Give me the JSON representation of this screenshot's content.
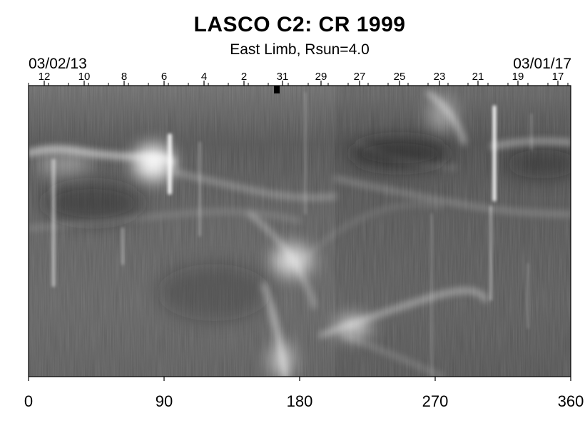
{
  "header": {
    "title": "LASCO C2: CR 1999",
    "subtitle": "East Limb, Rsun=4.0",
    "date_start": "03/02/13",
    "date_end": "03/01/17"
  },
  "top_axis": {
    "day_ticks": [
      {
        "label": "12",
        "pos": 5.5
      },
      {
        "label": "10",
        "pos": 19.5
      },
      {
        "label": "8",
        "pos": 33.5
      },
      {
        "label": "6",
        "pos": 47.5
      },
      {
        "label": "4",
        "pos": 61.5
      },
      {
        "label": "2",
        "pos": 75.5
      },
      {
        "label": "31",
        "pos": 89.0
      },
      {
        "label": "29",
        "pos": 102.5
      },
      {
        "label": "27",
        "pos": 116.0
      },
      {
        "label": "25",
        "pos": 130.0
      },
      {
        "label": "23",
        "pos": 144.0
      },
      {
        "label": "21",
        "pos": 157.5
      },
      {
        "label": "19",
        "pos": 171.5
      },
      {
        "label": "17",
        "pos": 185.5
      }
    ],
    "position_range": [
      0,
      190
    ]
  },
  "bottom_axis": {
    "ticks": [
      "0",
      "90",
      "180",
      "270",
      "360"
    ],
    "range": [
      0,
      360
    ]
  },
  "colors": {
    "frame": "#000000",
    "background": "#ffffff",
    "image_base": "#5a5a5a"
  }
}
